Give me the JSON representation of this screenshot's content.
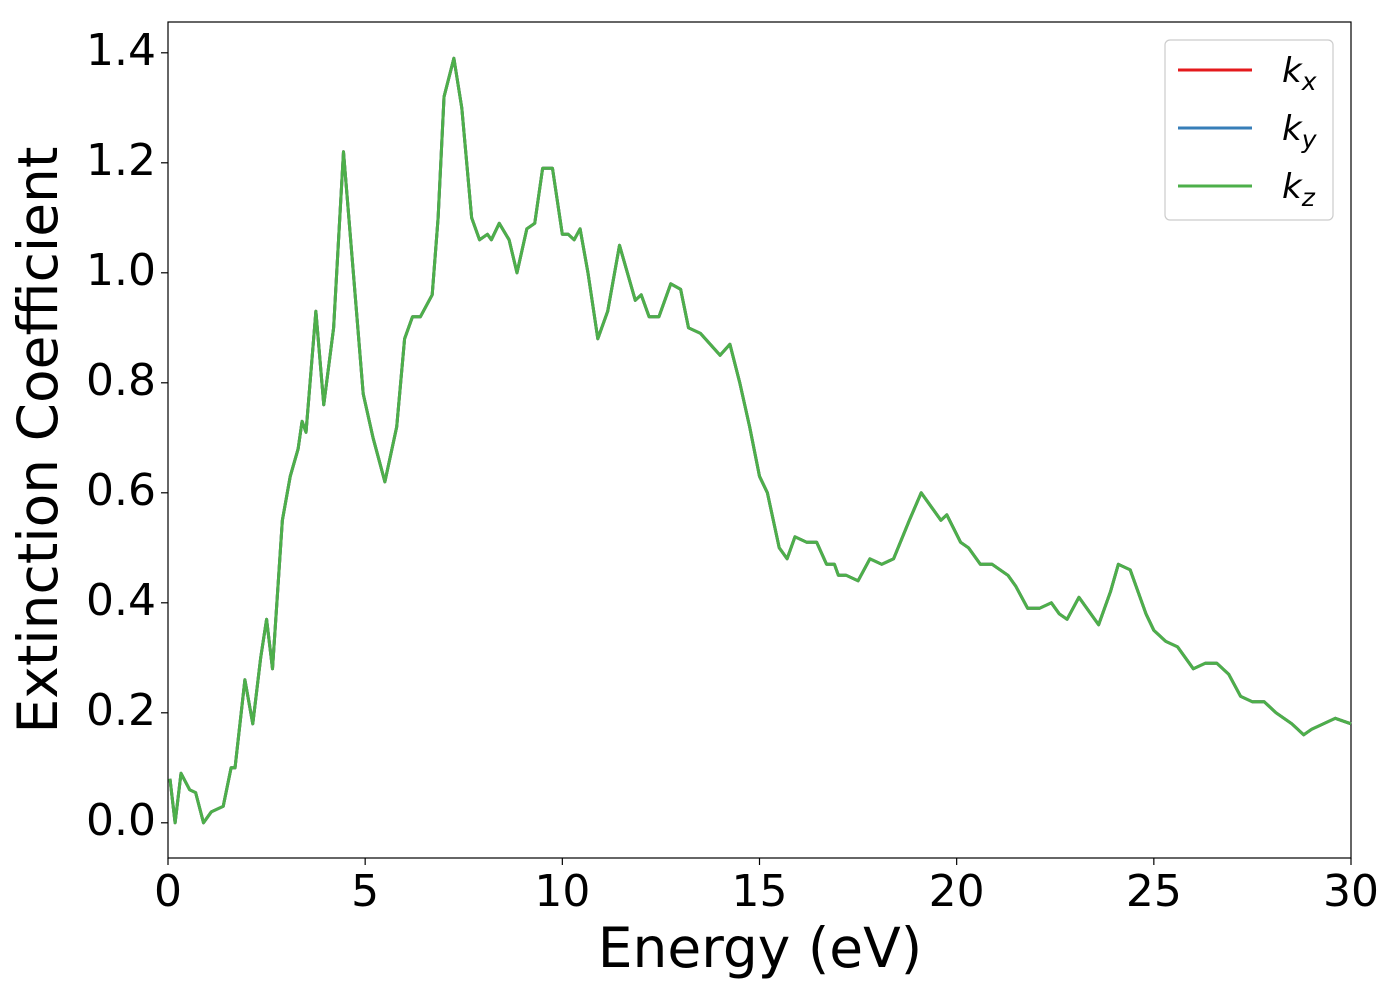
{
  "chart_data": {
    "type": "line",
    "xlabel": "Energy (eV)",
    "ylabel": "Extinction Coefficient",
    "xlim": [
      0,
      30
    ],
    "ylim": [
      -0.064,
      1.456
    ],
    "xticks": [
      0,
      5,
      10,
      15,
      20,
      25,
      30
    ],
    "yticks": [
      {
        "value": 0,
        "label": "0.0"
      },
      0.2,
      0.4,
      0.6,
      0.8,
      {
        "value": 1,
        "label": "1.0"
      },
      1.2,
      1.4
    ],
    "legend": "upper right",
    "x": [
      0.05,
      0.18,
      0.33,
      0.55,
      0.7,
      0.9,
      1.1,
      1.4,
      1.6,
      1.7,
      1.95,
      2.15,
      2.35,
      2.5,
      2.65,
      2.9,
      3.1,
      3.3,
      3.4,
      3.5,
      3.75,
      3.95,
      4.2,
      4.45,
      4.7,
      4.95,
      5.2,
      5.5,
      5.8,
      6.0,
      6.2,
      6.4,
      6.7,
      6.85,
      7.0,
      7.25,
      7.45,
      7.7,
      7.9,
      8.1,
      8.2,
      8.4,
      8.65,
      8.85,
      9.1,
      9.3,
      9.5,
      9.75,
      10.0,
      10.15,
      10.3,
      10.45,
      10.65,
      10.9,
      11.15,
      11.45,
      11.65,
      11.85,
      12.0,
      12.2,
      12.45,
      12.75,
      13.0,
      13.2,
      13.5,
      13.75,
      14.0,
      14.25,
      14.5,
      14.75,
      15.0,
      15.2,
      15.5,
      15.7,
      15.9,
      16.2,
      16.45,
      16.7,
      16.9,
      17.0,
      17.2,
      17.5,
      17.8,
      18.1,
      18.4,
      18.8,
      19.1,
      19.4,
      19.6,
      19.75,
      20.1,
      20.3,
      20.6,
      20.9,
      21.3,
      21.5,
      21.8,
      22.1,
      22.4,
      22.6,
      22.8,
      23.1,
      23.4,
      23.6,
      23.9,
      24.1,
      24.4,
      24.6,
      24.8,
      25.0,
      25.3,
      25.6,
      25.8,
      26.0,
      26.3,
      26.6,
      26.9,
      27.2,
      27.5,
      27.8,
      28.1,
      28.5,
      28.8,
      29.0,
      29.3,
      29.6,
      30
    ],
    "series": [
      {
        "name": "kx",
        "color": "#e41a1c",
        "values": [
          0.08,
          0.0,
          0.09,
          0.06,
          0.055,
          0.0,
          0.02,
          0.03,
          0.1,
          0.1,
          0.26,
          0.18,
          0.3,
          0.37,
          0.28,
          0.55,
          0.63,
          0.68,
          0.73,
          0.71,
          0.93,
          0.76,
          0.9,
          1.22,
          1.0,
          0.78,
          0.7,
          0.62,
          0.72,
          0.88,
          0.92,
          0.92,
          0.96,
          1.1,
          1.32,
          1.39,
          1.3,
          1.1,
          1.06,
          1.07,
          1.06,
          1.09,
          1.06,
          1.0,
          1.08,
          1.09,
          1.19,
          1.19,
          1.07,
          1.07,
          1.06,
          1.08,
          1.0,
          0.88,
          0.93,
          1.05,
          1.0,
          0.95,
          0.96,
          0.92,
          0.92,
          0.98,
          0.97,
          0.9,
          0.89,
          0.87,
          0.85,
          0.87,
          0.8,
          0.72,
          0.63,
          0.6,
          0.5,
          0.48,
          0.52,
          0.51,
          0.51,
          0.47,
          0.47,
          0.45,
          0.45,
          0.44,
          0.48,
          0.47,
          0.48,
          0.55,
          0.6,
          0.57,
          0.55,
          0.56,
          0.51,
          0.5,
          0.47,
          0.47,
          0.45,
          0.43,
          0.39,
          0.39,
          0.4,
          0.38,
          0.37,
          0.41,
          0.38,
          0.36,
          0.42,
          0.47,
          0.46,
          0.42,
          0.38,
          0.35,
          0.33,
          0.32,
          0.3,
          0.28,
          0.29,
          0.29,
          0.27,
          0.23,
          0.22,
          0.22,
          0.2,
          0.18,
          0.16,
          0.17,
          0.18,
          0.19,
          0.18
        ]
      },
      {
        "name": "ky",
        "color": "#377eb8",
        "values": [
          0.08,
          0.0,
          0.09,
          0.06,
          0.055,
          0.0,
          0.02,
          0.03,
          0.1,
          0.1,
          0.26,
          0.18,
          0.3,
          0.37,
          0.28,
          0.55,
          0.63,
          0.68,
          0.73,
          0.71,
          0.93,
          0.76,
          0.9,
          1.22,
          1.0,
          0.78,
          0.7,
          0.62,
          0.72,
          0.88,
          0.92,
          0.92,
          0.96,
          1.1,
          1.32,
          1.39,
          1.3,
          1.1,
          1.06,
          1.07,
          1.06,
          1.09,
          1.06,
          1.0,
          1.08,
          1.09,
          1.19,
          1.19,
          1.07,
          1.07,
          1.06,
          1.08,
          1.0,
          0.88,
          0.93,
          1.05,
          1.0,
          0.95,
          0.96,
          0.92,
          0.92,
          0.98,
          0.97,
          0.9,
          0.89,
          0.87,
          0.85,
          0.87,
          0.8,
          0.72,
          0.63,
          0.6,
          0.5,
          0.48,
          0.52,
          0.51,
          0.51,
          0.47,
          0.47,
          0.45,
          0.45,
          0.44,
          0.48,
          0.47,
          0.48,
          0.55,
          0.6,
          0.57,
          0.55,
          0.56,
          0.51,
          0.5,
          0.47,
          0.47,
          0.45,
          0.43,
          0.39,
          0.39,
          0.4,
          0.38,
          0.37,
          0.41,
          0.38,
          0.36,
          0.42,
          0.47,
          0.46,
          0.42,
          0.38,
          0.35,
          0.33,
          0.32,
          0.3,
          0.28,
          0.29,
          0.29,
          0.27,
          0.23,
          0.22,
          0.22,
          0.2,
          0.18,
          0.16,
          0.17,
          0.18,
          0.19,
          0.18
        ]
      },
      {
        "name": "kz",
        "color": "#4daf4a",
        "values": [
          0.08,
          0.0,
          0.09,
          0.06,
          0.055,
          0.0,
          0.02,
          0.03,
          0.1,
          0.1,
          0.26,
          0.18,
          0.3,
          0.37,
          0.28,
          0.55,
          0.63,
          0.68,
          0.73,
          0.71,
          0.93,
          0.76,
          0.9,
          1.22,
          1.0,
          0.78,
          0.7,
          0.62,
          0.72,
          0.88,
          0.92,
          0.92,
          0.96,
          1.1,
          1.32,
          1.39,
          1.3,
          1.1,
          1.06,
          1.07,
          1.06,
          1.09,
          1.06,
          1.0,
          1.08,
          1.09,
          1.19,
          1.19,
          1.07,
          1.07,
          1.06,
          1.08,
          1.0,
          0.88,
          0.93,
          1.05,
          1.0,
          0.95,
          0.96,
          0.92,
          0.92,
          0.98,
          0.97,
          0.9,
          0.89,
          0.87,
          0.85,
          0.87,
          0.8,
          0.72,
          0.63,
          0.6,
          0.5,
          0.48,
          0.52,
          0.51,
          0.51,
          0.47,
          0.47,
          0.45,
          0.45,
          0.44,
          0.48,
          0.47,
          0.48,
          0.55,
          0.6,
          0.57,
          0.55,
          0.56,
          0.51,
          0.5,
          0.47,
          0.47,
          0.45,
          0.43,
          0.39,
          0.39,
          0.4,
          0.38,
          0.37,
          0.41,
          0.38,
          0.36,
          0.42,
          0.47,
          0.46,
          0.42,
          0.38,
          0.35,
          0.33,
          0.32,
          0.3,
          0.28,
          0.29,
          0.29,
          0.27,
          0.23,
          0.22,
          0.22,
          0.2,
          0.18,
          0.16,
          0.17,
          0.18,
          0.19,
          0.18
        ]
      }
    ]
  }
}
